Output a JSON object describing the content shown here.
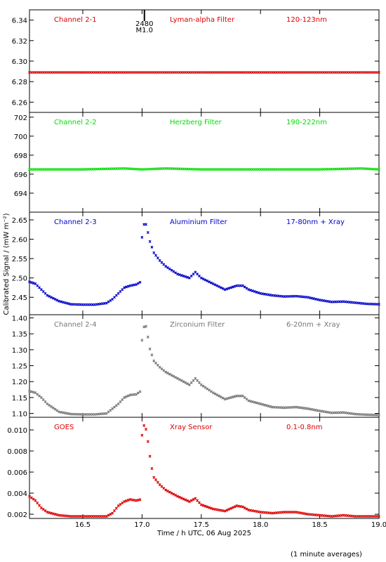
{
  "chart_data": {
    "type": "scatter",
    "x_axis": {
      "label": "Time / h UTC, 06 Aug 2025",
      "range": [
        16.05,
        19.0
      ],
      "ticks": [
        16.5,
        17.0,
        17.5,
        18.0,
        18.5,
        19.0
      ],
      "tick_labels": [
        "16.5",
        "17.0",
        "17.5",
        "18.0",
        "18.5",
        "19.0"
      ]
    },
    "y_axis_label": "Calibrated Signal / (mW m⁻²)",
    "note": "(1 minute averages)",
    "event_marker": {
      "x": 17.02,
      "label_top": "2480",
      "label_bottom": "M1.0"
    },
    "panels": [
      {
        "name": "Channel 2-1",
        "filter": "Lyman-alpha Filter",
        "band": "120-123nm",
        "color": "#dd0000",
        "ylim": [
          6.25,
          6.35
        ],
        "yticks": [
          6.26,
          6.28,
          6.3,
          6.32,
          6.34
        ],
        "ytick_labels": [
          "6.26",
          "6.28",
          "6.30",
          "6.32",
          "6.34"
        ],
        "x": [
          16.05,
          16.5,
          17.0,
          17.5,
          18.0,
          18.5,
          19.0
        ],
        "y": [
          6.289,
          6.289,
          6.289,
          6.289,
          6.289,
          6.289,
          6.289
        ]
      },
      {
        "name": "Channel 2-2",
        "filter": "Herzberg Filter",
        "band": "190-222nm",
        "color": "#00dd00",
        "ylim": [
          692.0,
          702.5
        ],
        "yticks": [
          694,
          696,
          698,
          700,
          702
        ],
        "ytick_labels": [
          "694",
          "696",
          "698",
          "700",
          "702"
        ],
        "x": [
          16.05,
          16.5,
          16.85,
          17.0,
          17.2,
          17.5,
          18.0,
          18.5,
          18.85,
          19.0
        ],
        "y": [
          696.5,
          696.5,
          696.6,
          696.5,
          696.6,
          696.5,
          696.5,
          696.5,
          696.6,
          696.5
        ]
      },
      {
        "name": "Channel 2-3",
        "filter": "Aluminium Filter",
        "band": "17-80nm + Xray",
        "color": "#0000cc",
        "ylim": [
          2.405,
          2.67
        ],
        "yticks": [
          2.45,
          2.5,
          2.55,
          2.6,
          2.65
        ],
        "ytick_labels": [
          "2.45",
          "2.50",
          "2.55",
          "2.60",
          "2.65"
        ],
        "x": [
          16.05,
          16.1,
          16.15,
          16.2,
          16.3,
          16.4,
          16.5,
          16.6,
          16.7,
          16.75,
          16.8,
          16.85,
          16.9,
          16.95,
          16.99,
          17.0,
          17.02,
          17.04,
          17.06,
          17.1,
          17.15,
          17.2,
          17.3,
          17.4,
          17.45,
          17.5,
          17.6,
          17.7,
          17.8,
          17.85,
          17.9,
          18.0,
          18.1,
          18.2,
          18.3,
          18.4,
          18.5,
          18.6,
          18.7,
          18.8,
          18.9,
          19.0
        ],
        "y": [
          2.49,
          2.485,
          2.47,
          2.455,
          2.44,
          2.432,
          2.431,
          2.431,
          2.435,
          2.445,
          2.46,
          2.475,
          2.48,
          2.483,
          2.49,
          2.605,
          2.645,
          2.635,
          2.6,
          2.565,
          2.545,
          2.53,
          2.51,
          2.5,
          2.515,
          2.5,
          2.485,
          2.47,
          2.48,
          2.48,
          2.47,
          2.46,
          2.455,
          2.452,
          2.453,
          2.45,
          2.443,
          2.438,
          2.439,
          2.436,
          2.433,
          2.432
        ]
      },
      {
        "name": "Channel 2-4",
        "filter": "Zirconium Filter",
        "band": "6-20nm + Xray",
        "color": "#777777",
        "ylim": [
          1.088,
          1.41
        ],
        "yticks": [
          1.1,
          1.15,
          1.2,
          1.25,
          1.3,
          1.35,
          1.4
        ],
        "ytick_labels": [
          "1.10",
          "1.15",
          "1.20",
          "1.25",
          "1.30",
          "1.35",
          "1.40"
        ],
        "x": [
          16.05,
          16.1,
          16.15,
          16.2,
          16.3,
          16.4,
          16.5,
          16.6,
          16.7,
          16.75,
          16.8,
          16.85,
          16.9,
          16.95,
          16.99,
          17.0,
          17.02,
          17.04,
          17.06,
          17.1,
          17.15,
          17.2,
          17.3,
          17.4,
          17.45,
          17.5,
          17.6,
          17.7,
          17.8,
          17.85,
          17.9,
          18.0,
          18.1,
          18.2,
          18.3,
          18.4,
          18.5,
          18.6,
          18.7,
          18.8,
          18.9,
          19.0
        ],
        "y": [
          1.17,
          1.165,
          1.15,
          1.13,
          1.105,
          1.098,
          1.097,
          1.097,
          1.1,
          1.115,
          1.13,
          1.15,
          1.158,
          1.16,
          1.17,
          1.33,
          1.38,
          1.37,
          1.31,
          1.265,
          1.245,
          1.23,
          1.21,
          1.19,
          1.21,
          1.19,
          1.165,
          1.145,
          1.155,
          1.155,
          1.14,
          1.13,
          1.12,
          1.118,
          1.12,
          1.115,
          1.108,
          1.102,
          1.103,
          1.098,
          1.096,
          1.095
        ]
      },
      {
        "name": "GOES",
        "filter": "Xray Sensor",
        "band": "0.1-0.8nm",
        "color": "#dd0000",
        "ylim": [
          0.0016,
          0.0112
        ],
        "yticks": [
          0.002,
          0.004,
          0.006,
          0.008,
          0.01
        ],
        "ytick_labels": [
          "0.002",
          "0.004",
          "0.006",
          "0.008",
          "0.010"
        ],
        "x": [
          16.05,
          16.1,
          16.15,
          16.2,
          16.3,
          16.4,
          16.5,
          16.6,
          16.7,
          16.75,
          16.8,
          16.85,
          16.9,
          16.95,
          16.99,
          17.0,
          17.02,
          17.04,
          17.06,
          17.08,
          17.1,
          17.15,
          17.2,
          17.3,
          17.4,
          17.45,
          17.5,
          17.6,
          17.7,
          17.8,
          17.85,
          17.9,
          18.0,
          18.1,
          18.2,
          18.3,
          18.4,
          18.5,
          18.6,
          18.7,
          18.8,
          18.9,
          19.0
        ],
        "y": [
          0.0037,
          0.0033,
          0.0026,
          0.0022,
          0.0019,
          0.0018,
          0.0018,
          0.0018,
          0.0018,
          0.0021,
          0.0028,
          0.0032,
          0.0034,
          0.0033,
          0.0034,
          0.0095,
          0.0106,
          0.0098,
          0.008,
          0.0065,
          0.0055,
          0.0048,
          0.0043,
          0.0037,
          0.0032,
          0.0035,
          0.0029,
          0.0025,
          0.0023,
          0.0028,
          0.0027,
          0.0024,
          0.0022,
          0.0021,
          0.0022,
          0.0022,
          0.002,
          0.0019,
          0.0018,
          0.0019,
          0.0018,
          0.0018,
          0.0018
        ]
      }
    ]
  }
}
